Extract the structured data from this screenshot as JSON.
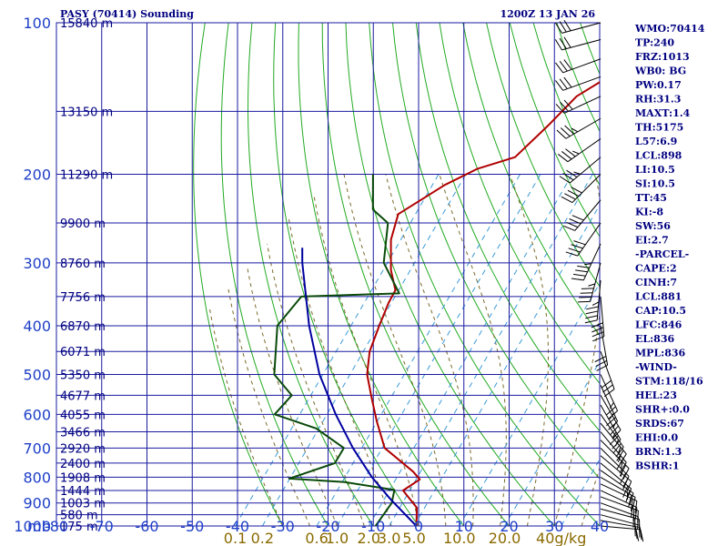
{
  "title_left": "PASY (70414) Sounding",
  "title_right": "1200Z 13 JAN 26",
  "colors": {
    "grid": "#1a1aa0",
    "dry_adiabat": "#22aa22",
    "moist_adiabat": "#7a6a2a",
    "mixing_ratio": "#3a9ad8",
    "temperature": "#b00000",
    "dewpoint": "#0a4a0a",
    "parcel": "#0000a0",
    "wind": "#000000",
    "labels": "#1e3fc8",
    "index_text": "#000080"
  },
  "chart_data": {
    "type": "line",
    "title": "PASY (70414) Sounding",
    "xlabel": "mb",
    "ylabel": "",
    "pressure_ticks": [
      "100",
      "200",
      "300",
      "400",
      "500",
      "600",
      "700",
      "800",
      "900",
      "1000"
    ],
    "pressure_values": [
      100,
      200,
      300,
      400,
      500,
      600,
      700,
      800,
      900,
      1000
    ],
    "temperature_ticks": [
      "-80",
      "-70",
      "-60",
      "-50",
      "-40",
      "-30",
      "-20",
      "-10",
      "0",
      "10",
      "20",
      "30",
      "40"
    ],
    "temperature_values": [
      -80,
      -70,
      -60,
      -50,
      -40,
      -30,
      -20,
      -10,
      0,
      10,
      20,
      30,
      40
    ],
    "xlim": [
      -80,
      40
    ],
    "ylim": [
      1000,
      100
    ],
    "mixing_ratio_labels": [
      {
        "label": "0.1",
        "t": -40.5
      },
      {
        "label": "0.2",
        "t": -34.5
      },
      {
        "label": "0.6",
        "t": -22.5
      },
      {
        "label": "1.0",
        "t": -18.0
      },
      {
        "label": "2.0",
        "t": -11.0
      },
      {
        "label": "3.0",
        "t": -6.5
      },
      {
        "label": "5.0",
        "t": -1.0
      },
      {
        "label": "10.0",
        "t": 9.0
      },
      {
        "label": "20.0",
        "t": 19.0
      },
      {
        "label": "40g/kg",
        "t": 31.5
      }
    ],
    "height_labels": [
      {
        "label": "15840 m",
        "p": 100
      },
      {
        "label": "13150 m",
        "p": 150
      },
      {
        "label": "11290 m",
        "p": 200
      },
      {
        "label": "9900 m",
        "p": 250
      },
      {
        "label": "8760 m",
        "p": 300
      },
      {
        "label": "7756 m",
        "p": 350
      },
      {
        "label": "6870 m",
        "p": 400
      },
      {
        "label": "6071 m",
        "p": 450
      },
      {
        "label": "5350 m",
        "p": 500
      },
      {
        "label": "4677 m",
        "p": 550
      },
      {
        "label": "4055 m",
        "p": 600
      },
      {
        "label": "3466 m",
        "p": 650
      },
      {
        "label": "2920 m",
        "p": 700
      },
      {
        "label": "2400 m",
        "p": 750
      },
      {
        "label": "1908 m",
        "p": 800
      },
      {
        "label": "1444 m",
        "p": 850
      },
      {
        "label": "1003 m",
        "p": 900
      },
      {
        "label": "580 m",
        "p": 950
      },
      {
        "label": "175 m",
        "p": 1000
      }
    ],
    "series": [
      {
        "name": "Temperature",
        "points": [
          {
            "p": 1000,
            "t": -0.5
          },
          {
            "p": 920,
            "t": -4
          },
          {
            "p": 850,
            "t": -10.5
          },
          {
            "p": 808,
            "t": -9
          },
          {
            "p": 780,
            "t": -12
          },
          {
            "p": 700,
            "t": -23
          },
          {
            "p": 620,
            "t": -30
          },
          {
            "p": 560,
            "t": -35.5
          },
          {
            "p": 500,
            "t": -41.5
          },
          {
            "p": 450,
            "t": -45.5
          },
          {
            "p": 400,
            "t": -48.5
          },
          {
            "p": 360,
            "t": -51
          },
          {
            "p": 340,
            "t": -52
          },
          {
            "p": 310,
            "t": -57
          },
          {
            "p": 270,
            "t": -63
          },
          {
            "p": 240,
            "t": -66.5
          },
          {
            "p": 210,
            "t": -62
          },
          {
            "p": 195,
            "t": -58
          },
          {
            "p": 185,
            "t": -52
          },
          {
            "p": 160,
            "t": -51
          },
          {
            "p": 140,
            "t": -50.5
          },
          {
            "p": 125,
            "t": -46.5
          },
          {
            "p": 112,
            "t": -47
          },
          {
            "p": 100,
            "t": -46
          }
        ]
      },
      {
        "name": "Dewpoint",
        "points": [
          {
            "p": 1000,
            "t": -9.5
          },
          {
            "p": 900,
            "t": -10.5
          },
          {
            "p": 848,
            "t": -12.5
          },
          {
            "p": 818,
            "t": -25
          },
          {
            "p": 805,
            "t": -38
          },
          {
            "p": 750,
            "t": -31
          },
          {
            "p": 700,
            "t": -32
          },
          {
            "p": 640,
            "t": -42
          },
          {
            "p": 600,
            "t": -54
          },
          {
            "p": 550,
            "t": -54
          },
          {
            "p": 500,
            "t": -62
          },
          {
            "p": 400,
            "t": -71
          },
          {
            "p": 350,
            "t": -71.5
          },
          {
            "p": 345,
            "t": -50.5
          },
          {
            "p": 300,
            "t": -60
          },
          {
            "p": 250,
            "t": -67
          },
          {
            "p": 235,
            "t": -73
          },
          {
            "p": 200,
            "t": -80
          }
        ]
      },
      {
        "name": "Parcel",
        "points": [
          {
            "p": 1000,
            "t": -0.5
          },
          {
            "p": 885,
            "t": -11.5
          },
          {
            "p": 800,
            "t": -20
          },
          {
            "p": 700,
            "t": -30
          },
          {
            "p": 600,
            "t": -40.5
          },
          {
            "p": 500,
            "t": -52
          },
          {
            "p": 400,
            "t": -64
          },
          {
            "p": 300,
            "t": -78
          },
          {
            "p": 280,
            "t": -81
          }
        ]
      }
    ],
    "wind_barbs": [
      {
        "p": 1000,
        "dir": 95,
        "spd": 20
      },
      {
        "p": 975,
        "dir": 100,
        "spd": 20
      },
      {
        "p": 950,
        "dir": 105,
        "spd": 20
      },
      {
        "p": 925,
        "dir": 105,
        "spd": 20
      },
      {
        "p": 900,
        "dir": 110,
        "spd": 20
      },
      {
        "p": 875,
        "dir": 110,
        "spd": 20
      },
      {
        "p": 850,
        "dir": 115,
        "spd": 20
      },
      {
        "p": 825,
        "dir": 115,
        "spd": 20
      },
      {
        "p": 800,
        "dir": 120,
        "spd": 25
      },
      {
        "p": 775,
        "dir": 125,
        "spd": 20
      },
      {
        "p": 750,
        "dir": 130,
        "spd": 20
      },
      {
        "p": 725,
        "dir": 130,
        "spd": 20
      },
      {
        "p": 700,
        "dir": 135,
        "spd": 25
      },
      {
        "p": 675,
        "dir": 135,
        "spd": 25
      },
      {
        "p": 650,
        "dir": 140,
        "spd": 25
      },
      {
        "p": 625,
        "dir": 140,
        "spd": 25
      },
      {
        "p": 600,
        "dir": 145,
        "spd": 25
      },
      {
        "p": 575,
        "dir": 150,
        "spd": 25
      },
      {
        "p": 550,
        "dir": 150,
        "spd": 25
      },
      {
        "p": 525,
        "dir": 155,
        "spd": 25
      },
      {
        "p": 500,
        "dir": 155,
        "spd": 25
      },
      {
        "p": 450,
        "dir": 160,
        "spd": 30
      },
      {
        "p": 400,
        "dir": 170,
        "spd": 30
      },
      {
        "p": 350,
        "dir": 175,
        "spd": 40
      },
      {
        "p": 325,
        "dir": 185,
        "spd": 45
      },
      {
        "p": 300,
        "dir": 195,
        "spd": 45
      },
      {
        "p": 275,
        "dir": 205,
        "spd": 45
      },
      {
        "p": 250,
        "dir": 215,
        "spd": 40
      },
      {
        "p": 225,
        "dir": 220,
        "spd": 40
      },
      {
        "p": 200,
        "dir": 225,
        "spd": 40
      },
      {
        "p": 185,
        "dir": 230,
        "spd": 35
      },
      {
        "p": 170,
        "dir": 235,
        "spd": 35
      },
      {
        "p": 155,
        "dir": 240,
        "spd": 35
      },
      {
        "p": 140,
        "dir": 245,
        "spd": 30
      },
      {
        "p": 128,
        "dir": 250,
        "spd": 30
      },
      {
        "p": 118,
        "dir": 250,
        "spd": 30
      },
      {
        "p": 108,
        "dir": 255,
        "spd": 30
      },
      {
        "p": 100,
        "dir": 255,
        "spd": 30
      }
    ]
  },
  "indices": [
    "WMO:70414",
    "TP:240",
    "FRZ:1013",
    "WB0: BG",
    "PW:0.17",
    "RH:31.3",
    "MAXT:1.4",
    "TH:5175",
    "L57:6.9",
    "LCL:898",
    "LI:10.5",
    "SI:10.5",
    "TT:45",
    "KI:-8",
    "SW:56",
    "EI:2.7",
    "-PARCEL-",
    "CAPE:2",
    "CINH:7",
    "LCL:881",
    "CAP:10.5",
    "LFC:846",
    "EL:836",
    "MPL:836",
    "-WIND-",
    "STM:118/16",
    "HEL:23",
    "SHR+:0.0",
    "SRDS:67",
    "EHI:0.0",
    "BRN:1.3",
    "BSHR:1"
  ]
}
